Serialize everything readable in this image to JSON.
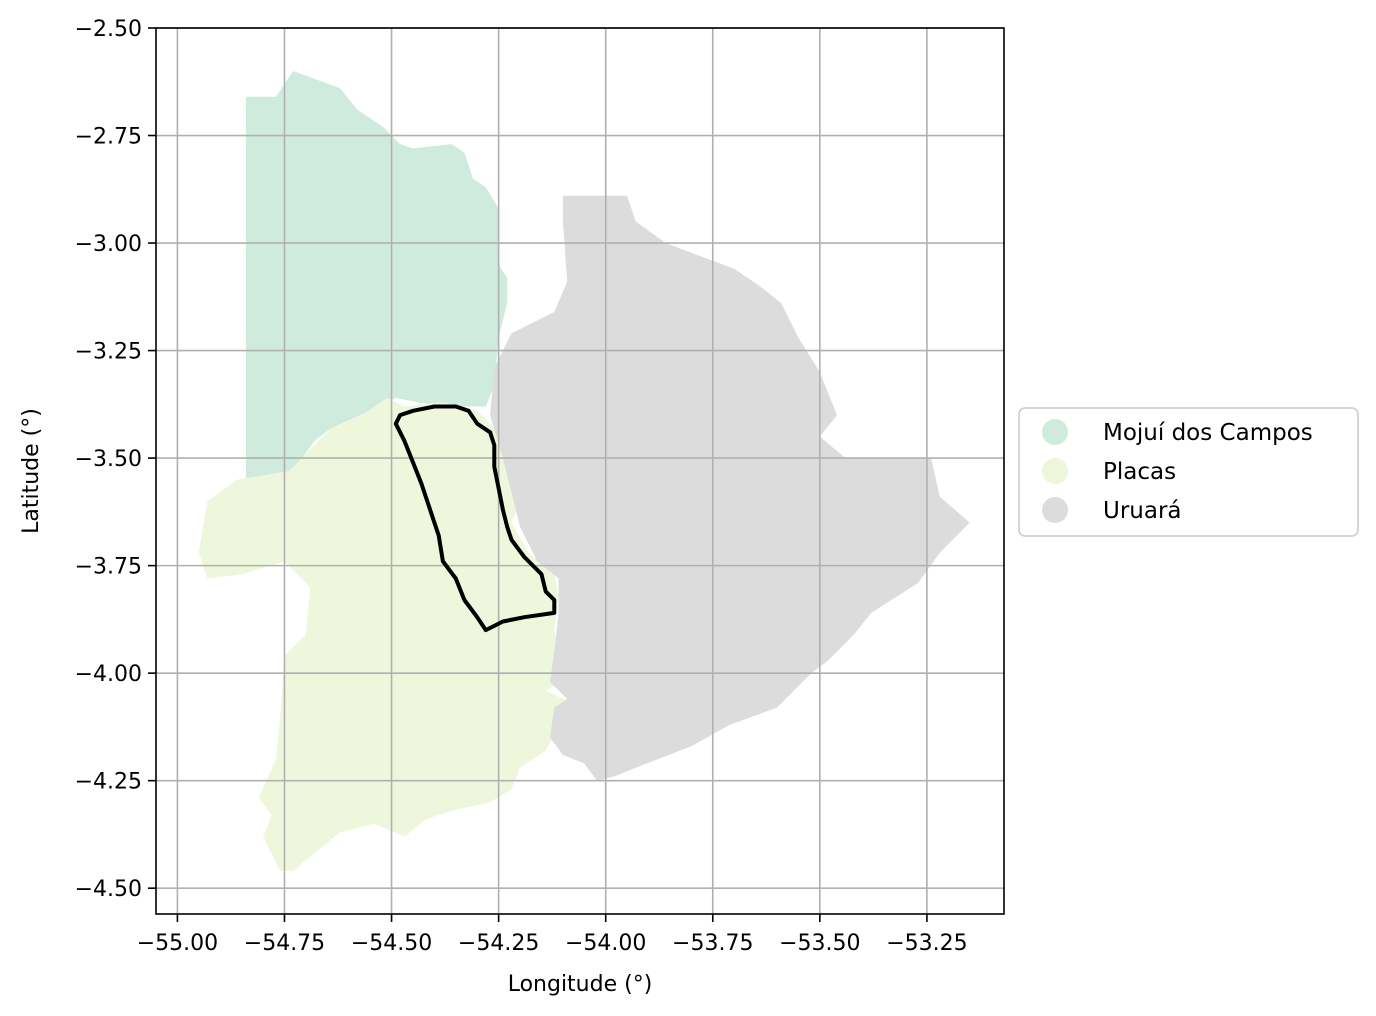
{
  "chart_data": {
    "type": "map",
    "xlabel": "Longitude (°)",
    "ylabel": "Latitude (°)",
    "xlim": [
      -55.05,
      -53.07
    ],
    "ylim": [
      -4.56,
      -2.5
    ],
    "grid": true,
    "xticks": [
      {
        "value": -55.0,
        "label": "−55.00"
      },
      {
        "value": -54.75,
        "label": "−54.75"
      },
      {
        "value": -54.5,
        "label": "−54.50"
      },
      {
        "value": -54.25,
        "label": "−54.25"
      },
      {
        "value": -54.0,
        "label": "−54.00"
      },
      {
        "value": -53.75,
        "label": "−53.75"
      },
      {
        "value": -53.5,
        "label": "−53.50"
      },
      {
        "value": -53.25,
        "label": "−53.25"
      }
    ],
    "yticks": [
      {
        "value": -2.5,
        "label": "−2.50"
      },
      {
        "value": -2.75,
        "label": "−2.75"
      },
      {
        "value": -3.0,
        "label": "−3.00"
      },
      {
        "value": -3.25,
        "label": "−3.25"
      },
      {
        "value": -3.5,
        "label": "−3.50"
      },
      {
        "value": -3.75,
        "label": "−3.75"
      },
      {
        "value": -4.0,
        "label": "−4.00"
      },
      {
        "value": -4.25,
        "label": "−4.25"
      },
      {
        "value": -4.5,
        "label": "−4.50"
      }
    ],
    "legend_position": "right",
    "regions": [
      {
        "name": "Mojuí dos Campos",
        "color": "#cfebde",
        "polygon": [
          [
            -54.84,
            -2.66
          ],
          [
            -54.77,
            -2.66
          ],
          [
            -54.73,
            -2.6
          ],
          [
            -54.62,
            -2.64
          ],
          [
            -54.58,
            -2.69
          ],
          [
            -54.52,
            -2.73
          ],
          [
            -54.48,
            -2.77
          ],
          [
            -54.45,
            -2.78
          ],
          [
            -54.36,
            -2.77
          ],
          [
            -54.33,
            -2.79
          ],
          [
            -54.31,
            -2.85
          ],
          [
            -54.28,
            -2.87
          ],
          [
            -54.25,
            -2.92
          ],
          [
            -54.25,
            -3.0
          ],
          [
            -54.25,
            -3.05
          ],
          [
            -54.23,
            -3.08
          ],
          [
            -54.23,
            -3.14
          ],
          [
            -54.25,
            -3.22
          ],
          [
            -54.26,
            -3.33
          ],
          [
            -54.28,
            -3.38
          ],
          [
            -54.38,
            -3.38
          ],
          [
            -54.44,
            -3.37
          ],
          [
            -54.49,
            -3.36
          ],
          [
            -54.55,
            -3.39
          ],
          [
            -54.64,
            -3.43
          ],
          [
            -54.68,
            -3.46
          ],
          [
            -54.73,
            -3.53
          ],
          [
            -54.84,
            -3.55
          ]
        ]
      },
      {
        "name": "Placas",
        "color": "#eef7db",
        "polygon": [
          [
            -54.74,
            -3.53
          ],
          [
            -54.68,
            -3.47
          ],
          [
            -54.64,
            -3.43
          ],
          [
            -54.57,
            -3.4
          ],
          [
            -54.51,
            -3.36
          ],
          [
            -54.47,
            -3.38
          ],
          [
            -54.38,
            -3.37
          ],
          [
            -54.3,
            -3.39
          ],
          [
            -54.27,
            -3.42
          ],
          [
            -54.23,
            -3.45
          ],
          [
            -54.22,
            -3.52
          ],
          [
            -54.2,
            -3.6
          ],
          [
            -54.22,
            -3.65
          ],
          [
            -54.18,
            -3.72
          ],
          [
            -54.12,
            -3.77
          ],
          [
            -54.11,
            -3.82
          ],
          [
            -54.12,
            -3.9
          ],
          [
            -54.11,
            -3.96
          ],
          [
            -54.1,
            -4.02
          ],
          [
            -54.14,
            -4.04
          ],
          [
            -54.08,
            -4.07
          ],
          [
            -54.11,
            -4.12
          ],
          [
            -54.14,
            -4.18
          ],
          [
            -54.2,
            -4.22
          ],
          [
            -54.22,
            -4.27
          ],
          [
            -54.27,
            -4.3
          ],
          [
            -54.36,
            -4.32
          ],
          [
            -54.42,
            -4.34
          ],
          [
            -54.47,
            -4.38
          ],
          [
            -54.54,
            -4.35
          ],
          [
            -54.62,
            -4.37
          ],
          [
            -54.67,
            -4.41
          ],
          [
            -54.73,
            -4.46
          ],
          [
            -54.76,
            -4.46
          ],
          [
            -54.8,
            -4.38
          ],
          [
            -54.78,
            -4.33
          ],
          [
            -54.81,
            -4.29
          ],
          [
            -54.77,
            -4.2
          ],
          [
            -54.76,
            -4.1
          ],
          [
            -54.75,
            -3.96
          ],
          [
            -54.7,
            -3.91
          ],
          [
            -54.69,
            -3.8
          ],
          [
            -54.75,
            -3.74
          ],
          [
            -54.85,
            -3.77
          ],
          [
            -54.93,
            -3.78
          ],
          [
            -54.95,
            -3.72
          ],
          [
            -54.93,
            -3.6
          ],
          [
            -54.86,
            -3.55
          ]
        ]
      },
      {
        "name": "Uruará",
        "color": "#dcdcdc",
        "polygon": [
          [
            -54.1,
            -2.89
          ],
          [
            -53.95,
            -2.89
          ],
          [
            -53.93,
            -2.95
          ],
          [
            -53.86,
            -3.0
          ],
          [
            -53.78,
            -3.03
          ],
          [
            -53.7,
            -3.06
          ],
          [
            -53.64,
            -3.1
          ],
          [
            -53.59,
            -3.14
          ],
          [
            -53.55,
            -3.22
          ],
          [
            -53.5,
            -3.3
          ],
          [
            -53.46,
            -3.4
          ],
          [
            -53.5,
            -3.45
          ],
          [
            -53.44,
            -3.5
          ],
          [
            -53.34,
            -3.5
          ],
          [
            -53.24,
            -3.5
          ],
          [
            -53.22,
            -3.59
          ],
          [
            -53.15,
            -3.65
          ],
          [
            -53.22,
            -3.72
          ],
          [
            -53.27,
            -3.79
          ],
          [
            -53.38,
            -3.86
          ],
          [
            -53.42,
            -3.91
          ],
          [
            -53.48,
            -3.97
          ],
          [
            -53.52,
            -4.0
          ],
          [
            -53.6,
            -4.08
          ],
          [
            -53.71,
            -4.12
          ],
          [
            -53.8,
            -4.17
          ],
          [
            -53.93,
            -4.22
          ],
          [
            -53.98,
            -4.24
          ],
          [
            -54.02,
            -4.25
          ],
          [
            -54.05,
            -4.21
          ],
          [
            -54.1,
            -4.19
          ],
          [
            -54.13,
            -4.15
          ],
          [
            -54.12,
            -4.08
          ],
          [
            -54.09,
            -4.06
          ],
          [
            -54.13,
            -4.02
          ],
          [
            -54.12,
            -3.95
          ],
          [
            -54.11,
            -3.86
          ],
          [
            -54.11,
            -3.78
          ],
          [
            -54.16,
            -3.74
          ],
          [
            -54.2,
            -3.66
          ],
          [
            -54.22,
            -3.58
          ],
          [
            -54.24,
            -3.5
          ],
          [
            -54.27,
            -3.4
          ],
          [
            -54.26,
            -3.29
          ],
          [
            -54.22,
            -3.21
          ],
          [
            -54.18,
            -3.19
          ],
          [
            -54.12,
            -3.16
          ],
          [
            -54.09,
            -3.09
          ],
          [
            -54.1,
            -2.95
          ]
        ]
      }
    ],
    "outline": {
      "color": "#000000",
      "polygon": [
        [
          -54.48,
          -3.4
        ],
        [
          -54.45,
          -3.39
        ],
        [
          -54.4,
          -3.38
        ],
        [
          -54.35,
          -3.38
        ],
        [
          -54.32,
          -3.39
        ],
        [
          -54.3,
          -3.42
        ],
        [
          -54.27,
          -3.44
        ],
        [
          -54.26,
          -3.47
        ],
        [
          -54.26,
          -3.52
        ],
        [
          -54.25,
          -3.57
        ],
        [
          -54.24,
          -3.62
        ],
        [
          -54.23,
          -3.66
        ],
        [
          -54.22,
          -3.69
        ],
        [
          -54.19,
          -3.73
        ],
        [
          -54.15,
          -3.77
        ],
        [
          -54.14,
          -3.81
        ],
        [
          -54.12,
          -3.83
        ],
        [
          -54.12,
          -3.86
        ],
        [
          -54.19,
          -3.87
        ],
        [
          -54.24,
          -3.88
        ],
        [
          -54.28,
          -3.9
        ],
        [
          -54.3,
          -3.87
        ],
        [
          -54.33,
          -3.83
        ],
        [
          -54.35,
          -3.78
        ],
        [
          -54.38,
          -3.74
        ],
        [
          -54.39,
          -3.68
        ],
        [
          -54.41,
          -3.62
        ],
        [
          -54.43,
          -3.56
        ],
        [
          -54.45,
          -3.51
        ],
        [
          -54.47,
          -3.46
        ],
        [
          -54.49,
          -3.42
        ]
      ]
    }
  }
}
